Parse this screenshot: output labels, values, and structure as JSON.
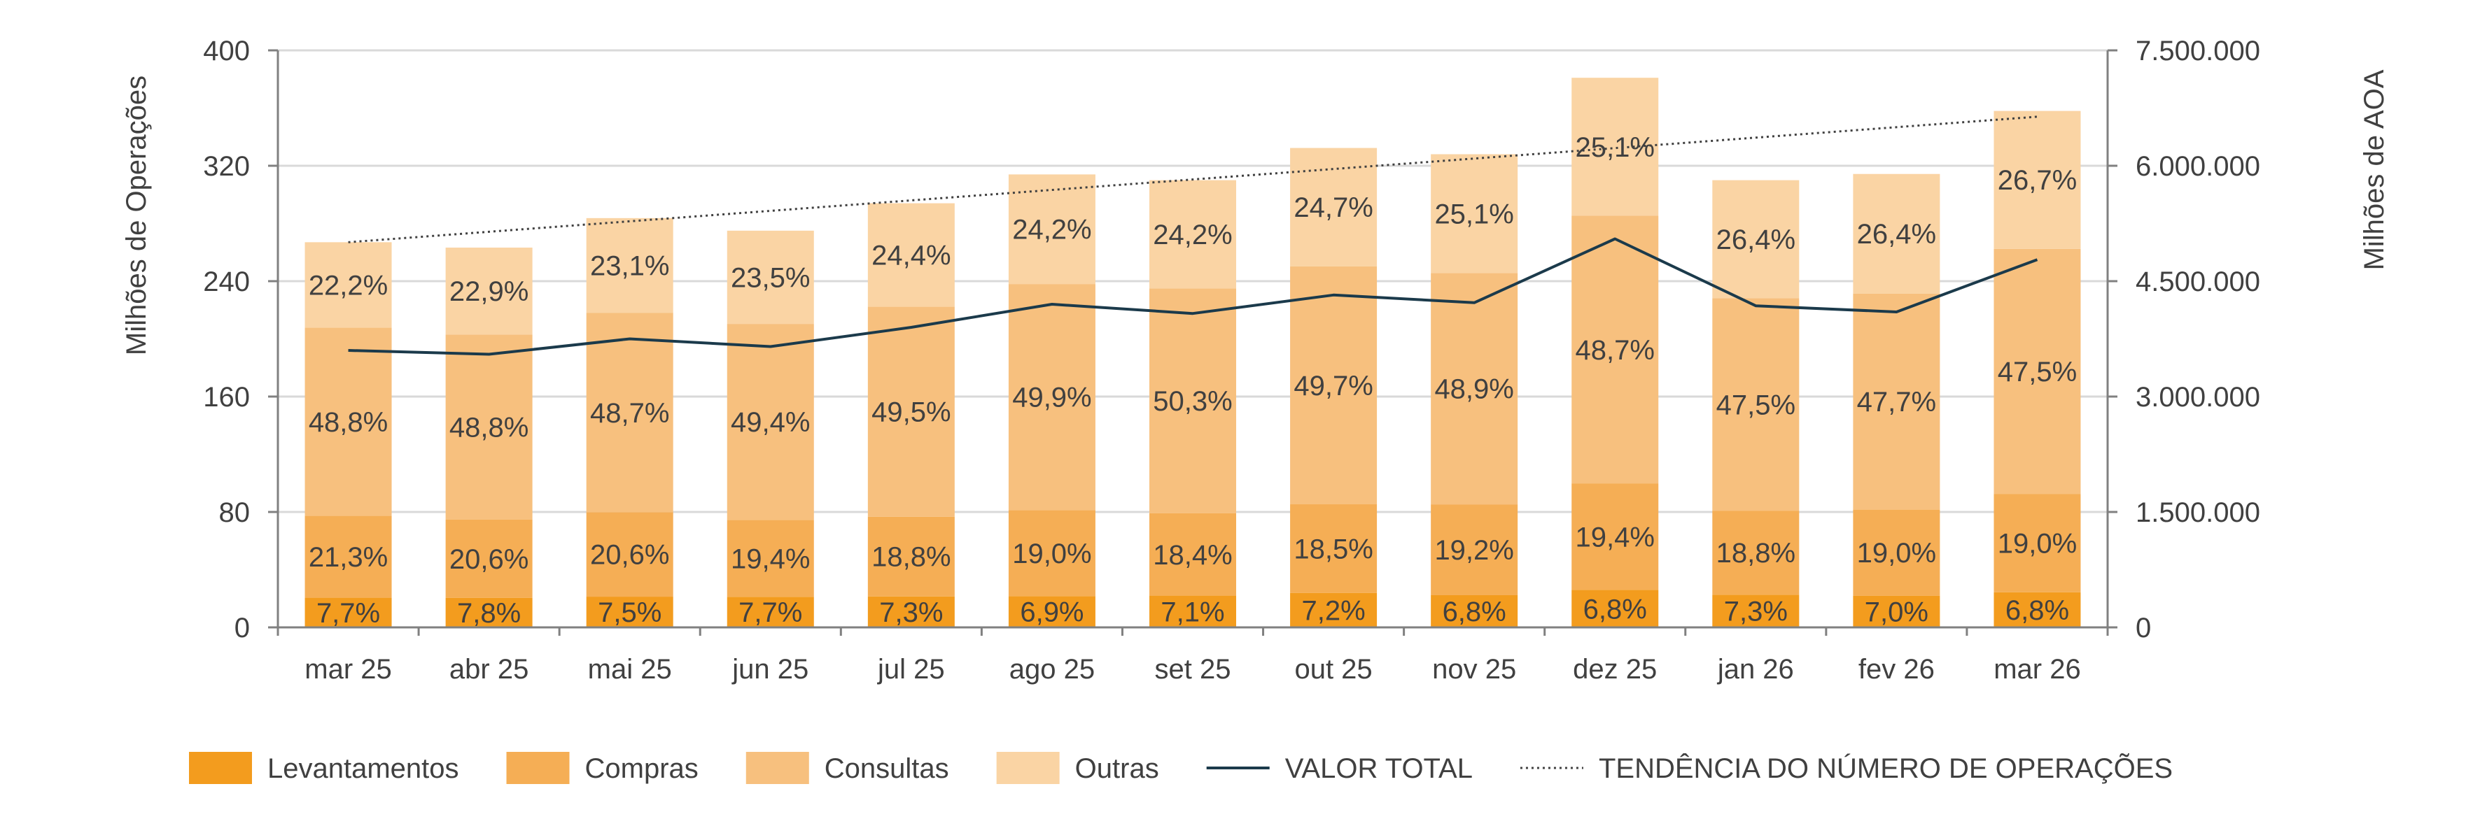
{
  "chart_data": {
    "type": "bar",
    "stacked": true,
    "categories": [
      "mar 25",
      "abr 25",
      "mai 25",
      "jun 25",
      "jul 25",
      "ago 25",
      "set 25",
      "out 25",
      "nov 25",
      "dez 25",
      "jan 26",
      "fev 26",
      "mar 26"
    ],
    "totals": [
      267,
      263,
      284,
      275,
      294,
      314,
      310,
      332,
      328,
      381,
      310,
      314,
      358
    ],
    "series": [
      {
        "name": "Levantamentos",
        "color": "#F39C1E",
        "labels": [
          "7,7%",
          "7,8%",
          "7,5%",
          "7,7%",
          "7,3%",
          "6,9%",
          "7,1%",
          "7,2%",
          "6,8%",
          "6,8%",
          "7,3%",
          "7,0%",
          "6,8%"
        ]
      },
      {
        "name": "Compras",
        "color": "#F5AE55",
        "labels": [
          "21,3%",
          "20,6%",
          "20,6%",
          "19,4%",
          "18,8%",
          "19,0%",
          "18,4%",
          "18,5%",
          "19,2%",
          "19,4%",
          "18,8%",
          "19,0%",
          "19,0%"
        ]
      },
      {
        "name": "Consultas",
        "color": "#F7C07E",
        "labels": [
          "48,8%",
          "48,8%",
          "48,7%",
          "49,4%",
          "49,5%",
          "49,9%",
          "50,3%",
          "49,7%",
          "48,9%",
          "48,7%",
          "47,5%",
          "47,7%",
          "47,5%"
        ]
      },
      {
        "name": "Outras",
        "color": "#FAD4A4",
        "labels": [
          "22,2%",
          "22,9%",
          "23,1%",
          "23,5%",
          "24,4%",
          "24,2%",
          "24,2%",
          "24,7%",
          "25,1%",
          "25,1%",
          "26,4%",
          "26,4%",
          "26,7%"
        ]
      }
    ],
    "line_series": {
      "name": "VALOR TOTAL",
      "axis": "right",
      "color": "#1B3A4B",
      "values": [
        3600000,
        3550000,
        3750000,
        3650000,
        3900000,
        4200000,
        4080000,
        4320000,
        4220000,
        5050000,
        4180000,
        4100000,
        4780000
      ]
    },
    "trend_line": {
      "name": "TENDÊNCIA DO NÚMERO DE OPERAÇÕES",
      "style": "dotted",
      "start": 267,
      "end": 354
    },
    "ylabel": "Milhões de Operações",
    "ylim": [
      0,
      400
    ],
    "y_ticks": [
      0,
      80,
      160,
      240,
      320,
      400
    ],
    "y_tick_labels": [
      "0",
      "80",
      "160",
      "240",
      "320",
      "400"
    ],
    "y2label": "Milhões de AOA",
    "y2lim": [
      0,
      7500000
    ],
    "y2_ticks": [
      0,
      1500000,
      3000000,
      4500000,
      6000000,
      7500000
    ],
    "y2_tick_labels": [
      "0",
      "1.500.000",
      "3.000.000",
      "4.500.000",
      "6.000.000",
      "7.500.000"
    ],
    "grid": true,
    "legend_position": "bottom",
    "legend": [
      {
        "label": "Levantamentos",
        "kind": "swatch",
        "color": "#F39C1E"
      },
      {
        "label": "Compras",
        "kind": "swatch",
        "color": "#F5AE55"
      },
      {
        "label": "Consultas",
        "kind": "swatch",
        "color": "#F7C07E"
      },
      {
        "label": "Outras",
        "kind": "swatch",
        "color": "#FAD4A4"
      },
      {
        "label": "VALOR TOTAL",
        "kind": "line",
        "color": "#1B3A4B"
      },
      {
        "label": "TENDÊNCIA DO NÚMERO DE OPERAÇÕES",
        "kind": "dotted",
        "color": "#404040"
      }
    ]
  }
}
